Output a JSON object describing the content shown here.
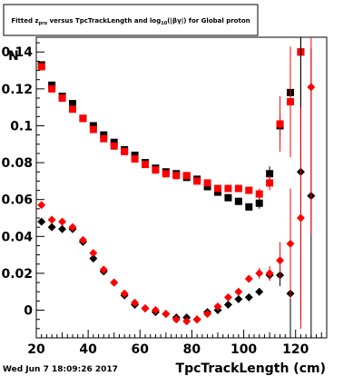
{
  "title_parts": {
    "pre": "Fitted  z",
    "sub1": "pro",
    "mid": " versus TpcTrackLength and log",
    "sub2": "10",
    "post": "(|βγ|) for Global proton"
  },
  "footer_timestamp": "Wed Jun  7 18:09:26 2017",
  "chart_data": {
    "type": "scatter",
    "title": "Fitted z_pro versus TpcTrackLength and log10(|βγ|) for Global proton",
    "xlabel": "TpcTrackLength (cm)",
    "ylabel_corner": "N",
    "xlim": [
      20,
      132
    ],
    "ylim": [
      -0.015,
      0.148
    ],
    "x_ticks": [
      20,
      40,
      60,
      80,
      100,
      120
    ],
    "y_ticks": [
      0,
      0.02,
      0.04,
      0.06,
      0.08,
      0.1,
      0.12,
      0.14
    ],
    "x_tick_labels": [
      "20",
      "40",
      "60",
      "80",
      "100",
      "120"
    ],
    "y_tick_labels": [
      "0",
      "0.02",
      "0.04",
      "0.06",
      "0.08",
      "0.1",
      "0.12",
      "0.14"
    ],
    "grid": false,
    "legend": "none",
    "series": [
      {
        "marker": "square",
        "color": "#000000",
        "x": [
          22,
          26,
          30,
          34,
          38,
          42,
          46,
          50,
          54,
          58,
          62,
          66,
          70,
          74,
          78,
          82,
          86,
          90,
          94,
          98,
          102,
          106,
          110,
          114,
          118,
          122
        ],
        "y": [
          0.133,
          0.122,
          0.116,
          0.112,
          0.104,
          0.1,
          0.095,
          0.091,
          0.087,
          0.084,
          0.08,
          0.077,
          0.075,
          0.074,
          0.072,
          0.071,
          0.067,
          0.064,
          0.061,
          0.059,
          0.056,
          0.058,
          0.074,
          0.1,
          0.118,
          0.14
        ],
        "err": [
          0.001,
          0.001,
          0.001,
          0.001,
          0.001,
          0.001,
          0.001,
          0.001,
          0.001,
          0.001,
          0.001,
          0.001,
          0.001,
          0.001,
          0.001,
          0.001,
          0.001,
          0.001,
          0.001,
          0.002,
          0.002,
          0.003,
          0.004,
          0.006,
          0.012,
          0.04
        ]
      },
      {
        "marker": "square",
        "color": "#ff0000",
        "x": [
          22,
          26,
          30,
          34,
          38,
          42,
          46,
          50,
          54,
          58,
          62,
          66,
          70,
          74,
          78,
          82,
          86,
          90,
          94,
          98,
          102,
          106,
          110,
          114,
          118,
          122
        ],
        "y": [
          0.132,
          0.12,
          0.115,
          0.109,
          0.104,
          0.098,
          0.093,
          0.089,
          0.086,
          0.082,
          0.079,
          0.076,
          0.074,
          0.073,
          0.073,
          0.07,
          0.069,
          0.066,
          0.066,
          0.066,
          0.065,
          0.063,
          0.069,
          0.101,
          0.113,
          0.14
        ],
        "err": [
          0.001,
          0.001,
          0.001,
          0.001,
          0.001,
          0.001,
          0.001,
          0.001,
          0.001,
          0.001,
          0.001,
          0.001,
          0.001,
          0.001,
          0.001,
          0.001,
          0.001,
          0.001,
          0.001,
          0.002,
          0.002,
          0.003,
          0.004,
          0.015,
          0.03,
          0.06
        ]
      },
      {
        "marker": "diamond",
        "color": "#000000",
        "x": [
          22,
          26,
          30,
          34,
          38,
          42,
          46,
          50,
          54,
          58,
          62,
          66,
          70,
          74,
          78,
          82,
          86,
          90,
          94,
          98,
          102,
          106,
          110,
          114,
          118,
          122,
          126
        ],
        "y": [
          0.048,
          0.045,
          0.044,
          0.044,
          0.037,
          0.028,
          0.021,
          0.015,
          0.008,
          0.003,
          0.001,
          -0.001,
          -0.002,
          -0.004,
          -0.004,
          -0.005,
          -0.001,
          0.0,
          0.003,
          0.006,
          0.007,
          0.01,
          0.019,
          0.019,
          0.009,
          0.075,
          0.062
        ],
        "err": [
          0.001,
          0.001,
          0.001,
          0.001,
          0.001,
          0.001,
          0.001,
          0.001,
          0.001,
          0.001,
          0.001,
          0.001,
          0.001,
          0.001,
          0.001,
          0.001,
          0.001,
          0.001,
          0.001,
          0.001,
          0.001,
          0.002,
          0.003,
          0.006,
          0.05,
          0.08,
          0.08
        ]
      },
      {
        "marker": "diamond",
        "color": "#ff0000",
        "x": [
          22,
          26,
          30,
          34,
          38,
          42,
          46,
          50,
          54,
          58,
          62,
          66,
          70,
          74,
          78,
          82,
          86,
          90,
          94,
          98,
          102,
          106,
          110,
          114,
          118,
          122,
          126
        ],
        "y": [
          0.057,
          0.049,
          0.048,
          0.045,
          0.038,
          0.031,
          0.022,
          0.015,
          0.009,
          0.004,
          0.001,
          0.0,
          -0.002,
          -0.005,
          -0.006,
          -0.005,
          -0.002,
          0.002,
          0.007,
          0.01,
          0.017,
          0.02,
          0.02,
          0.027,
          0.036,
          0.05,
          0.121
        ],
        "err": [
          0.001,
          0.001,
          0.001,
          0.001,
          0.001,
          0.001,
          0.001,
          0.001,
          0.001,
          0.001,
          0.001,
          0.001,
          0.001,
          0.001,
          0.001,
          0.001,
          0.001,
          0.001,
          0.001,
          0.001,
          0.002,
          0.003,
          0.004,
          0.01,
          0.03,
          0.06,
          0.08
        ]
      }
    ]
  }
}
